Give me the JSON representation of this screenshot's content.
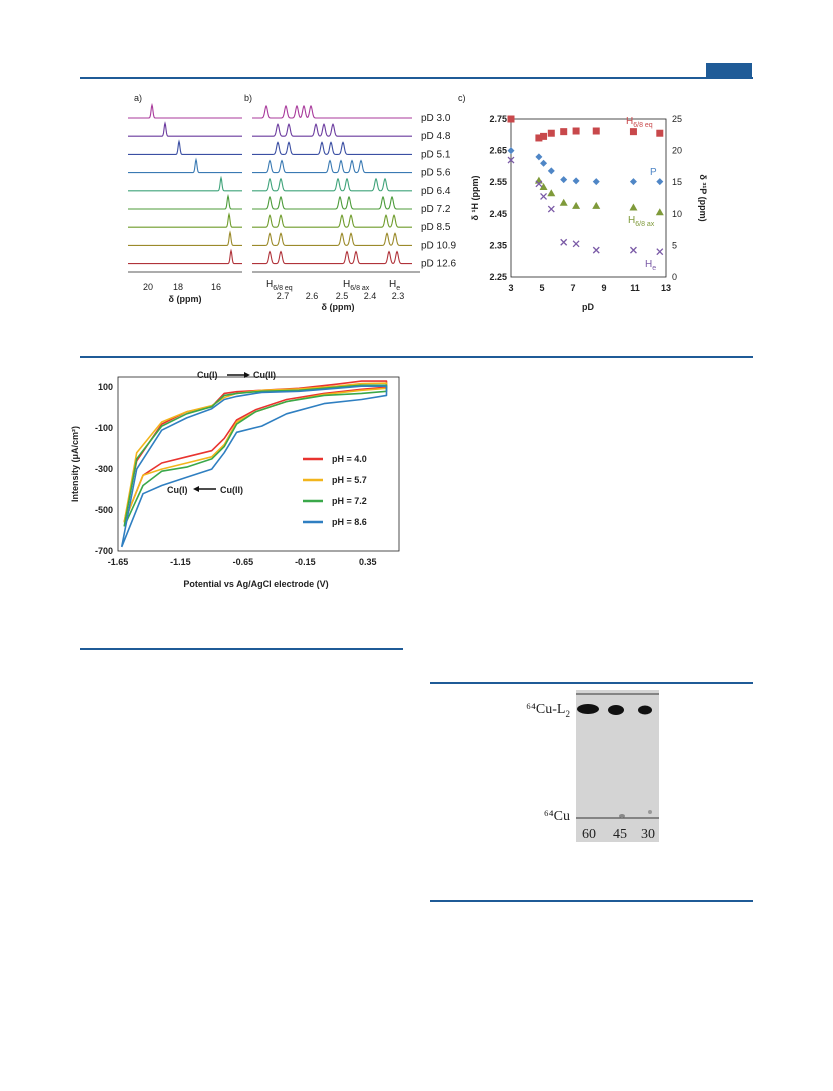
{
  "colors": {
    "accent": "#1f5b97",
    "nmr_traces": [
      "#a83a9b",
      "#6a3a9e",
      "#3b4fa3",
      "#3a7ab3",
      "#3fa37a",
      "#4c9b3a",
      "#6e9b2a",
      "#9b8a2a",
      "#b0333a"
    ],
    "cv": {
      "pH4.0": "#e8332f",
      "pH5.7": "#f2b51c",
      "pH7.2": "#3aa84a",
      "pH8.6": "#2f7fc1"
    },
    "pd_plot": {
      "H68eq": "#c8484b",
      "P": "#4f86c6",
      "H68ax": "#7f9a3a",
      "He": "#7a5aa6"
    }
  },
  "nmr": {
    "panel_a_label": "a)",
    "panel_b_label": "b)",
    "panel_a_xticks": [
      "20",
      "18",
      "16"
    ],
    "panel_a_xlabel": "δ (ppm)",
    "panel_b_xticks": [
      "2.7",
      "2.6",
      "2.5",
      "2.4",
      "2.3"
    ],
    "panel_b_xlabel": "δ (ppm)",
    "pd_labels": [
      "pD 3.0",
      "pD 4.8",
      "pD 5.1",
      "pD 5.6",
      "pD 6.4",
      "pD 7.2",
      "pD 8.5",
      "pD 10.9",
      "pD 12.6"
    ],
    "peak_labels": {
      "eq_main": "H",
      "eq_sub": "6/8 eq",
      "ax_main": "H",
      "ax_sub": "6/8 ax",
      "e_main": "H",
      "e_sub": "e"
    }
  },
  "chart_data": [
    {
      "type": "scatter",
      "panel_label": "c)",
      "xlabel": "pD",
      "ylabel_left": "δ ¹H (ppm)",
      "ylabel_right": "δ ³¹P (ppm)",
      "xlim": [
        3,
        13
      ],
      "ylim_left": [
        2.25,
        2.75
      ],
      "ylim_right": [
        0,
        25
      ],
      "xticks": [
        "3",
        "5",
        "7",
        "9",
        "11",
        "13"
      ],
      "yticks_left": [
        "2.25",
        "2.35",
        "2.45",
        "2.55",
        "2.65",
        "2.75"
      ],
      "yticks_right": [
        "0",
        "5",
        "10",
        "15",
        "20",
        "25"
      ],
      "series": [
        {
          "name": "H6/8 eq",
          "axis": "left",
          "marker": "square",
          "x": [
            3.0,
            4.8,
            5.1,
            5.6,
            6.4,
            7.2,
            8.5,
            10.9,
            12.6
          ],
          "y": [
            2.75,
            2.69,
            2.695,
            2.705,
            2.71,
            2.712,
            2.712,
            2.71,
            2.705
          ]
        },
        {
          "name": "P",
          "axis": "right",
          "marker": "diamond",
          "x": [
            3.0,
            4.8,
            5.1,
            5.6,
            6.4,
            7.2,
            8.5,
            10.9,
            12.6
          ],
          "y": [
            20.0,
            19.0,
            18.0,
            16.8,
            15.4,
            15.2,
            15.1,
            15.1,
            15.1
          ]
        },
        {
          "name": "H6/8 ax",
          "axis": "left",
          "marker": "triangle",
          "x": [
            4.8,
            5.1,
            5.6,
            6.4,
            7.2,
            8.5,
            10.9,
            12.6
          ],
          "y": [
            2.555,
            2.535,
            2.515,
            2.485,
            2.475,
            2.475,
            2.47,
            2.455
          ]
        },
        {
          "name": "He",
          "axis": "left",
          "marker": "x",
          "x": [
            3.0,
            4.8,
            5.1,
            5.6,
            6.4,
            7.2,
            8.5,
            10.9,
            12.6
          ],
          "y": [
            2.62,
            2.545,
            2.505,
            2.465,
            2.36,
            2.355,
            2.335,
            2.335,
            2.33
          ]
        }
      ],
      "legend_labels": [
        {
          "main": "H",
          "sub": "6/8 eq"
        },
        {
          "main": "P",
          "sub": ""
        },
        {
          "main": "H",
          "sub": "6/8 ax"
        },
        {
          "main": "H",
          "sub": "e"
        }
      ]
    },
    {
      "type": "line",
      "xlabel": "Potential vs Ag/AgCl electrode (V)",
      "ylabel": "Intensity (μA/cm²)",
      "xlim": [
        -1.65,
        0.6
      ],
      "ylim": [
        -700,
        150
      ],
      "xticks": [
        "-1.65",
        "-1.15",
        "-0.65",
        "-0.15",
        "0.35"
      ],
      "yticks": [
        "100",
        "-100",
        "-300",
        "-500",
        "-700"
      ],
      "legend_position": "right",
      "series": [
        {
          "name": "pH = 4.0",
          "upper": [
            [
              -1.6,
              -560
            ],
            [
              -1.5,
              -260
            ],
            [
              -1.3,
              -80
            ],
            [
              -1.1,
              -20
            ],
            [
              -0.9,
              5
            ],
            [
              -0.8,
              70
            ],
            [
              -0.7,
              78
            ],
            [
              -0.5,
              85
            ],
            [
              -0.2,
              95
            ],
            [
              0.1,
              115
            ],
            [
              0.3,
              130
            ],
            [
              0.5,
              130
            ]
          ],
          "lower": [
            [
              0.5,
              100
            ],
            [
              0.3,
              90
            ],
            [
              0.0,
              70
            ],
            [
              -0.3,
              40
            ],
            [
              -0.55,
              -10
            ],
            [
              -0.7,
              -60
            ],
            [
              -0.8,
              -150
            ],
            [
              -0.9,
              -210
            ],
            [
              -1.1,
              -240
            ],
            [
              -1.3,
              -270
            ],
            [
              -1.45,
              -330
            ],
            [
              -1.6,
              -560
            ]
          ]
        },
        {
          "name": "pH = 5.7",
          "upper": [
            [
              -1.6,
              -560
            ],
            [
              -1.5,
              -220
            ],
            [
              -1.3,
              -70
            ],
            [
              -1.1,
              -20
            ],
            [
              -0.9,
              10
            ],
            [
              -0.8,
              50
            ],
            [
              -0.7,
              70
            ],
            [
              -0.5,
              85
            ],
            [
              -0.2,
              92
            ],
            [
              0.1,
              105
            ],
            [
              0.3,
              118
            ],
            [
              0.5,
              120
            ]
          ],
          "lower": [
            [
              0.5,
              95
            ],
            [
              0.3,
              85
            ],
            [
              0.0,
              65
            ],
            [
              -0.3,
              30
            ],
            [
              -0.55,
              -20
            ],
            [
              -0.7,
              -70
            ],
            [
              -0.8,
              -180
            ],
            [
              -0.9,
              -240
            ],
            [
              -1.1,
              -270
            ],
            [
              -1.3,
              -300
            ],
            [
              -1.45,
              -330
            ],
            [
              -1.6,
              -560
            ]
          ]
        },
        {
          "name": "pH = 7.2",
          "upper": [
            [
              -1.6,
              -580
            ],
            [
              -1.5,
              -250
            ],
            [
              -1.3,
              -90
            ],
            [
              -1.1,
              -30
            ],
            [
              -0.9,
              5
            ],
            [
              -0.8,
              60
            ],
            [
              -0.7,
              70
            ],
            [
              -0.5,
              80
            ],
            [
              -0.2,
              85
            ],
            [
              0.1,
              100
            ],
            [
              0.3,
              110
            ],
            [
              0.5,
              110
            ]
          ],
          "lower": [
            [
              0.5,
              80
            ],
            [
              0.3,
              70
            ],
            [
              0.0,
              60
            ],
            [
              -0.3,
              30
            ],
            [
              -0.55,
              -20
            ],
            [
              -0.7,
              -80
            ],
            [
              -0.8,
              -190
            ],
            [
              -0.9,
              -250
            ],
            [
              -1.1,
              -290
            ],
            [
              -1.3,
              -310
            ],
            [
              -1.45,
              -380
            ],
            [
              -1.6,
              -580
            ]
          ]
        },
        {
          "name": "pH = 8.6",
          "upper": [
            [
              -1.62,
              -680
            ],
            [
              -1.5,
              -300
            ],
            [
              -1.3,
              -110
            ],
            [
              -1.1,
              -50
            ],
            [
              -0.9,
              -5
            ],
            [
              -0.8,
              40
            ],
            [
              -0.7,
              55
            ],
            [
              -0.5,
              75
            ],
            [
              -0.2,
              80
            ],
            [
              0.1,
              95
            ],
            [
              0.3,
              105
            ],
            [
              0.5,
              105
            ]
          ],
          "lower": [
            [
              0.5,
              60
            ],
            [
              0.3,
              40
            ],
            [
              0.0,
              20
            ],
            [
              -0.3,
              -30
            ],
            [
              -0.5,
              -90
            ],
            [
              -0.7,
              -120
            ],
            [
              -0.8,
              -220
            ],
            [
              -0.9,
              -300
            ],
            [
              -1.1,
              -340
            ],
            [
              -1.3,
              -380
            ],
            [
              -1.45,
              -420
            ],
            [
              -1.62,
              -680
            ]
          ]
        }
      ],
      "annotations": {
        "top_left": "Cu(I)",
        "top_right": "Cu(II)",
        "bottom_left": "Cu(I)",
        "bottom_right": "Cu(II)"
      }
    }
  ],
  "tlc": {
    "top_label_main": "⁶⁴Cu-L",
    "top_label_sub": "2",
    "bottom_label": "⁶⁴Cu",
    "lane_labels": [
      "60",
      "45",
      "30"
    ]
  }
}
